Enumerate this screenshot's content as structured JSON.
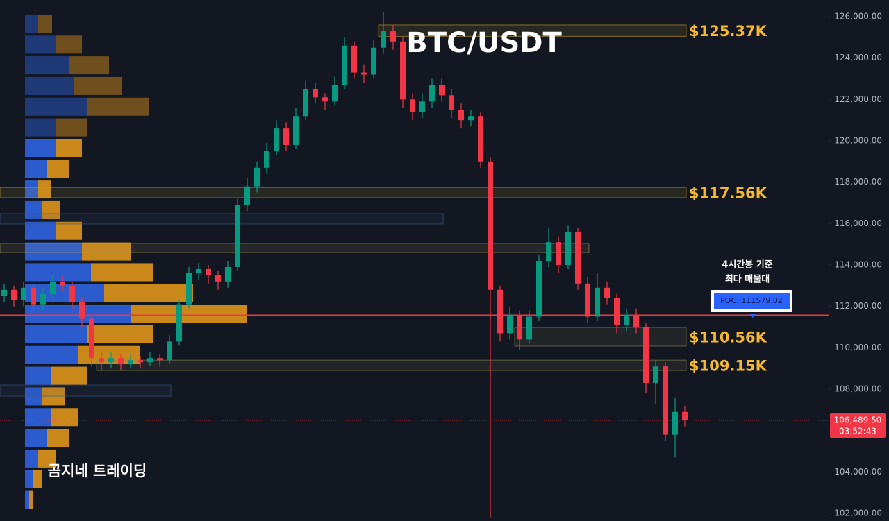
{
  "chart_data": {
    "type": "candlestick",
    "title": "BTC/USDT",
    "watermark": "곰지네 트레이딩",
    "colors": {
      "up": "#089981",
      "down": "#f23645"
    },
    "open": [
      112500,
      112800,
      112300,
      112900,
      112100,
      112600,
      113200,
      113000,
      112200,
      111400,
      109500,
      109300,
      109500,
      109200,
      109400,
      109300,
      109500,
      109400,
      110300,
      112100,
      113600,
      113800,
      113500,
      113200,
      113900,
      116900,
      117800,
      118700,
      119500,
      120600,
      119800,
      121200,
      122500,
      122100,
      121900,
      122700,
      124600,
      123300,
      123200,
      124500,
      125300,
      124800,
      122000,
      121400,
      121900,
      122700,
      122200,
      121500,
      121000,
      121200,
      119000,
      112800,
      110700,
      111600,
      110400,
      111500,
      114200,
      115100,
      114000,
      115600,
      113100,
      111500,
      112900,
      112400,
      111100,
      111600,
      111000,
      108300,
      109100,
      105800,
      106900
    ],
    "high": [
      113100,
      113000,
      113200,
      113100,
      112900,
      113500,
      113500,
      113200,
      112400,
      111600,
      109800,
      109800,
      109700,
      109700,
      109600,
      109800,
      109700,
      110600,
      112300,
      113900,
      114100,
      114000,
      113700,
      114200,
      117200,
      118200,
      119000,
      119900,
      121000,
      120900,
      121600,
      122900,
      122800,
      122300,
      123100,
      125000,
      124800,
      123700,
      124900,
      126200,
      125600,
      125000,
      122300,
      122300,
      123000,
      123000,
      122500,
      121800,
      121500,
      121400,
      119200,
      113000,
      112000,
      111800,
      111800,
      114500,
      115800,
      115400,
      115900,
      115800,
      113400,
      113600,
      113200,
      112600,
      111900,
      111900,
      111200,
      109400,
      109300,
      107600,
      107200
    ],
    "low": [
      112200,
      112000,
      112000,
      111800,
      111800,
      112400,
      112700,
      111900,
      111000,
      109100,
      108900,
      109000,
      108900,
      109000,
      109000,
      109100,
      109100,
      109200,
      110100,
      111900,
      113300,
      113100,
      112800,
      112900,
      113700,
      116600,
      117500,
      118400,
      119300,
      119500,
      119600,
      121000,
      121800,
      121500,
      121700,
      122500,
      123000,
      122800,
      123000,
      124200,
      124400,
      121600,
      121000,
      121100,
      121600,
      121900,
      121100,
      120600,
      120700,
      118700,
      101800,
      110300,
      110400,
      109900,
      110200,
      111300,
      113900,
      113600,
      113800,
      112800,
      111200,
      111300,
      112100,
      110700,
      110800,
      110700,
      107800,
      107300,
      105500,
      104700,
      106200
    ],
    "close": [
      112800,
      112300,
      112900,
      112100,
      112600,
      113200,
      113000,
      112200,
      111400,
      109500,
      109300,
      109500,
      109200,
      109400,
      109300,
      109500,
      109400,
      110300,
      112100,
      113600,
      113800,
      113500,
      113200,
      113900,
      116900,
      117800,
      118700,
      119500,
      120600,
      119800,
      121200,
      122500,
      122100,
      121900,
      122700,
      124600,
      123300,
      123200,
      124500,
      125300,
      124800,
      122000,
      121400,
      121900,
      122700,
      122200,
      121500,
      121000,
      121200,
      119000,
      112800,
      110700,
      111600,
      110400,
      111500,
      114200,
      115100,
      114000,
      115600,
      113100,
      111500,
      112900,
      112400,
      111100,
      111600,
      111000,
      108300,
      109100,
      105800,
      106900,
      106489.5
    ],
    "ylim": [
      101630,
      126805
    ],
    "yticks": [
      {
        "value": 102000,
        "label": "102,000.00"
      },
      {
        "value": 104000,
        "label": "104,000.00"
      },
      {
        "value": 106000,
        "label": "106,000.00"
      },
      {
        "value": 108000,
        "label": "108,000.00"
      },
      {
        "value": 110000,
        "label": "110,000.00"
      },
      {
        "value": 112000,
        "label": "112,000.00"
      },
      {
        "value": 114000,
        "label": "114,000.00"
      },
      {
        "value": 116000,
        "label": "116,000.00"
      },
      {
        "value": 118000,
        "label": "118,000.00"
      },
      {
        "value": 120000,
        "label": "120,000.00"
      },
      {
        "value": 122000,
        "label": "122,000.00"
      },
      {
        "value": 124000,
        "label": "124,000.00"
      },
      {
        "value": 126000,
        "label": "126,000.00"
      }
    ],
    "last_price": {
      "value": 106489.5,
      "label": "106,489.50"
    },
    "countdown": "03:52:43",
    "poc": {
      "value": 111579.02,
      "label": "POC: 111579.02",
      "color": "#f23645"
    },
    "annotation": [
      "4시간봉 기준",
      "최다 매물대"
    ],
    "zones": [
      {
        "low": 125050,
        "high": 125600,
        "from": 39,
        "to": 70,
        "label": "$125.37K",
        "color": "#c9a227"
      },
      {
        "low": 117250,
        "high": 117750,
        "from": 0,
        "to": 70,
        "label": "$117.56K",
        "color": "#c9a227"
      },
      {
        "low": 115980,
        "high": 116480,
        "from": 0,
        "to": 45,
        "color": "#3a5a8c"
      },
      {
        "low": 114600,
        "high": 115040,
        "from": 0,
        "to": 60,
        "color": "#b0a060"
      },
      {
        "low": 110080,
        "high": 110980,
        "from": 53,
        "to": 70,
        "label": "$110.56K",
        "color": "#8a8a5a"
      },
      {
        "low": 108900,
        "high": 109400,
        "from": 10,
        "to": 70,
        "label": "$109.15K",
        "color": "#8a8a5a"
      },
      {
        "low": 107660,
        "high": 108200,
        "from": 0,
        "to": 17,
        "color": "#3a5a8c"
      }
    ],
    "volume_profile": {
      "levels": [
        125650,
        124650,
        123650,
        122650,
        121650,
        120650,
        119650,
        118650,
        117650,
        116650,
        115650,
        114650,
        113650,
        112650,
        111650,
        110650,
        109650,
        108650,
        107650,
        106650,
        105650,
        104650,
        103650,
        102650
      ],
      "buy": [
        19,
        44,
        64,
        70,
        89,
        44,
        44,
        31,
        19,
        24,
        44,
        82,
        95,
        114,
        153,
        89,
        76,
        38,
        24,
        38,
        31,
        19,
        12,
        6
      ],
      "sell": [
        20,
        38,
        57,
        70,
        90,
        45,
        38,
        33,
        19,
        27,
        38,
        71,
        90,
        128,
        166,
        96,
        90,
        51,
        33,
        38,
        33,
        25,
        13,
        6
      ],
      "buy_color": "#2f63e0",
      "sell_color": "#e0951a",
      "value_area": [
        102150,
        120150
      ]
    }
  }
}
